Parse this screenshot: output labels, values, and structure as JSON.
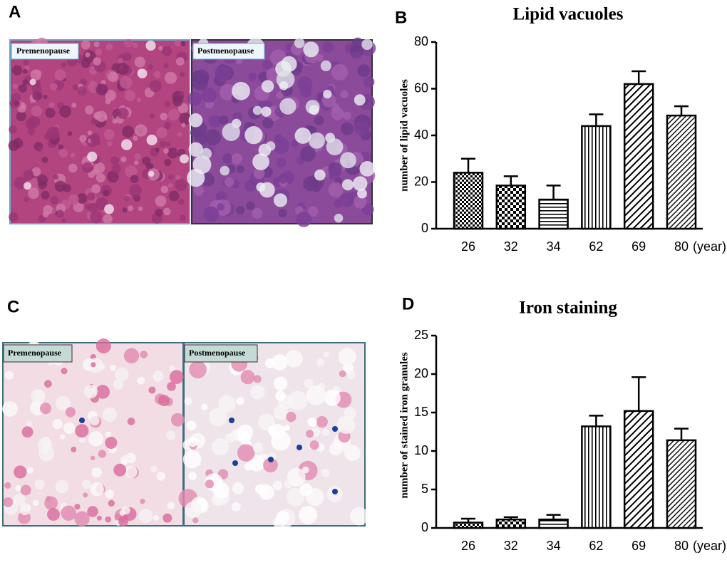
{
  "panel_labels": [
    "A",
    "B",
    "C",
    "D"
  ],
  "micrograph_labels": [
    "Premenopause",
    "Postmenopause",
    "Premenopause",
    "Postmenopause"
  ],
  "chart_data": [
    {
      "type": "bar",
      "title": "Lipid vacuoles",
      "ylabel": "number of lipid vacuoles",
      "xlabel": "(year)",
      "categories": [
        "26",
        "32",
        "34",
        "62",
        "69",
        "80"
      ],
      "values": [
        24,
        18.5,
        12.5,
        44,
        62,
        48.5
      ],
      "errors": [
        6,
        4,
        6,
        5,
        5.5,
        4
      ],
      "color": "#000000",
      "ylim": [
        0,
        80
      ],
      "yticks": [
        0,
        20,
        40,
        60,
        80
      ]
    },
    {
      "type": "bar",
      "title": "Iron staining",
      "ylabel": "number of stained iron granules",
      "xlabel": "(year)",
      "categories": [
        "26",
        "32",
        "34",
        "62",
        "69",
        "80"
      ],
      "values": [
        0.7,
        1.1,
        1.1,
        13.2,
        15.2,
        11.4
      ],
      "errors": [
        0.5,
        0.3,
        0.6,
        1.4,
        4.4,
        1.5
      ],
      "color": "#000000",
      "ylim": [
        0,
        25
      ],
      "yticks": [
        0,
        5,
        10,
        15,
        20,
        25
      ]
    }
  ]
}
